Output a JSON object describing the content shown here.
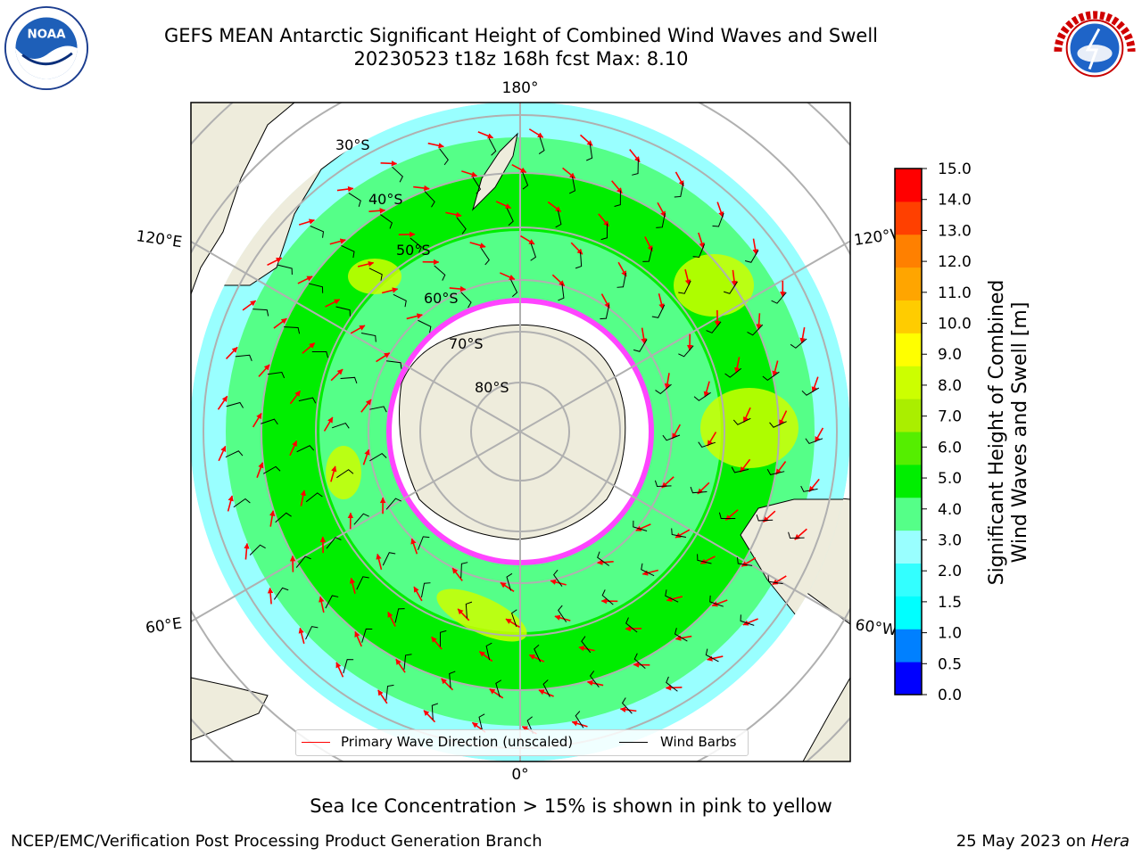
{
  "header": {
    "title_line1": "GEFS MEAN Antarctic Significant Height of Combined Wind Waves and Swell",
    "title_line2": "20230523 t18z 168h fcst   Max: 8.10"
  },
  "logos": {
    "left": "NOAA",
    "right": "NATIONAL WEATHER SERVICE"
  },
  "map": {
    "projection": "south-polar-stereographic",
    "lon_labels": {
      "top": "180°",
      "bottom": "0°",
      "upper_left": "120°E",
      "lower_left": "60°E",
      "upper_right": "120°W",
      "lower_right": "60°W"
    },
    "lat_labels": [
      "30°S",
      "40°S",
      "50°S",
      "60°S",
      "70°S",
      "80°S"
    ],
    "legend": {
      "wave_label": "Primary Wave Direction (unscaled)",
      "barb_label": "Wind Barbs",
      "wave_color": "#ff0000",
      "barb_color": "#000000"
    }
  },
  "colorbar": {
    "label_line1": "Significant Height of Combined",
    "label_line2": "Wind Waves and Swell [m]",
    "ticks": [
      "15.0",
      "14.0",
      "13.0",
      "12.0",
      "11.0",
      "10.0",
      "9.0",
      "8.0",
      "7.0",
      "6.0",
      "5.0",
      "4.0",
      "3.0",
      "2.0",
      "1.5",
      "1.0",
      "0.5",
      "0.0"
    ],
    "colors": [
      "#0000ff",
      "#0080ff",
      "#00ffff",
      "#33ffff",
      "#99ffff",
      "#55ff88",
      "#00ee00",
      "#55ee00",
      "#aaee00",
      "#ccff00",
      "#ffff00",
      "#ffcc00",
      "#ffa500",
      "#ff8000",
      "#ff4000",
      "#ff0000"
    ]
  },
  "caption": "Sea Ice Concentration > 15% is shown in pink to yellow",
  "footer": {
    "left": "NCEP/EMC/Verification Post Processing Product Generation Branch",
    "right_date": "25 May 2023 on ",
    "right_host": "Hera"
  }
}
